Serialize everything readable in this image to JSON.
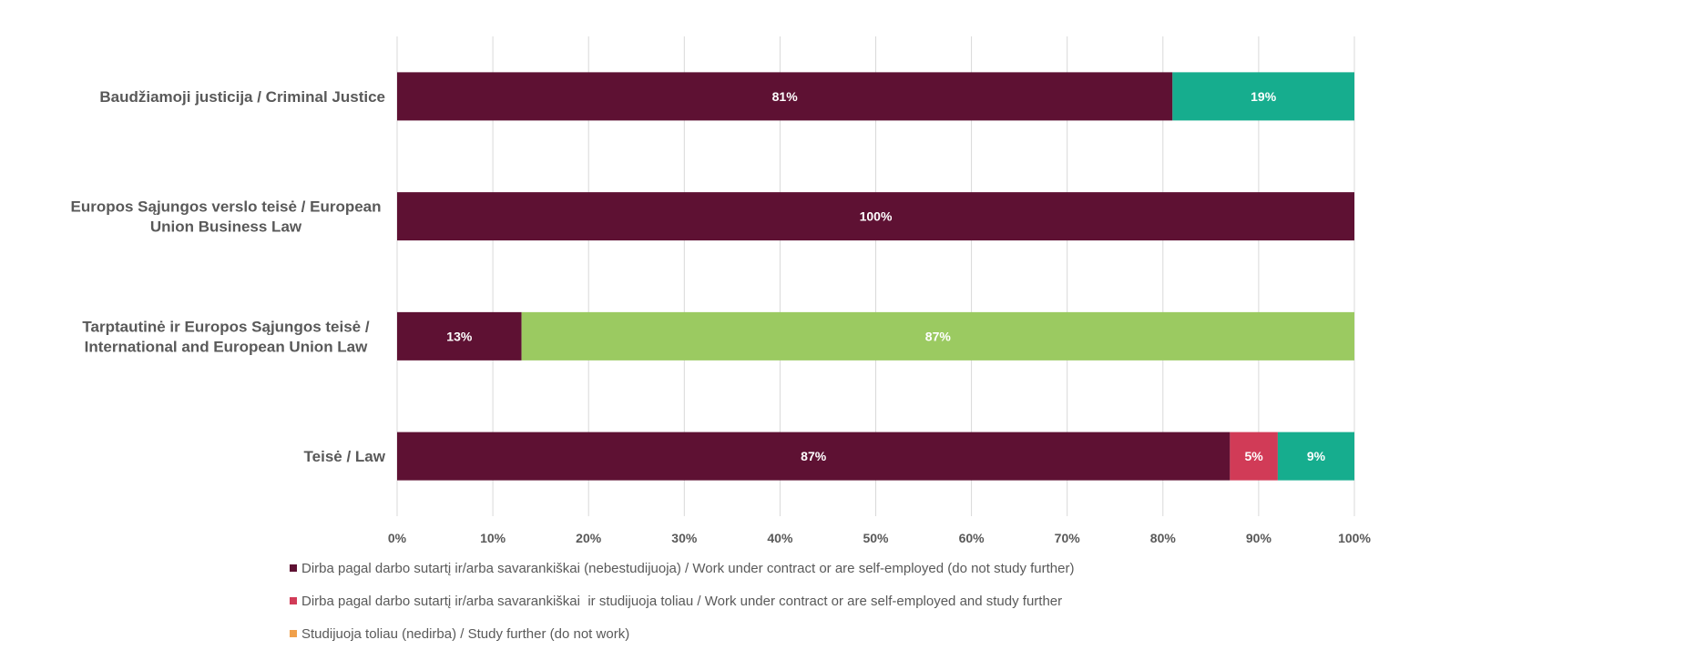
{
  "chart_data": {
    "type": "bar",
    "orientation": "horizontal",
    "stacked": true,
    "percent_scale": true,
    "categories": [
      [
        "Baudžiamoji justicija / Criminal Justice"
      ],
      [
        "Europos Sąjungos verslo teisė / European",
        "Union Business Law"
      ],
      [
        "Tarptautinė ir Europos Sąjungos teisė /",
        "International and European Union Law"
      ],
      [
        "Teisė / Law"
      ]
    ],
    "series": [
      {
        "name": "Dirba pagal darbo sutartį ir/arba savarankiškai (nebestudijuoja) / Work under contract or are self-employed (do not study further)",
        "color": "#5e1133",
        "values": [
          81,
          100,
          13,
          87
        ],
        "labels": [
          "81%",
          "100%",
          "13%",
          "87%"
        ]
      },
      {
        "name": "Dirba pagal darbo sutartį ir/arba savarankiškai  ir studijuoja toliau / Work under contract or are self-employed and study further",
        "color": "#d13b57",
        "values": [
          0,
          0,
          0,
          5
        ],
        "labels": [
          "",
          "",
          "",
          "5%"
        ]
      },
      {
        "name": "Studijuoja toliau (nedirba) / Study further (do not work)",
        "color": "#f0a04b",
        "values": [
          0,
          0,
          0,
          0
        ],
        "labels": [
          "",
          "",
          "",
          ""
        ]
      },
      {
        "name": "",
        "color": "#9bca61",
        "values": [
          0,
          0,
          87,
          0
        ],
        "labels": [
          "",
          "",
          "87%",
          ""
        ]
      },
      {
        "name": "",
        "color": "#16ad8e",
        "values": [
          19,
          0,
          0,
          9
        ],
        "labels": [
          "19%",
          "",
          "",
          "9%"
        ]
      }
    ],
    "xlim": [
      0,
      100
    ],
    "x_ticks": [
      "0%",
      "10%",
      "20%",
      "30%",
      "40%",
      "50%",
      "60%",
      "70%",
      "80%",
      "90%",
      "100%"
    ],
    "grid": true,
    "legend_position": "bottom-left",
    "legend": [
      "Dirba pagal darbo sutartį ir/arba savarankiškai (nebestudijuoja) / Work under contract or are self-employed (do not study further)",
      "Dirba pagal darbo sutartį ir/arba savarankiškai  ir studijuoja toliau / Work under contract or are self-employed and study further",
      "Studijuoja toliau (nedirba) / Study further (do not work)"
    ],
    "legend_colors": [
      "#5e1133",
      "#d13b57",
      "#f0a04b"
    ]
  }
}
